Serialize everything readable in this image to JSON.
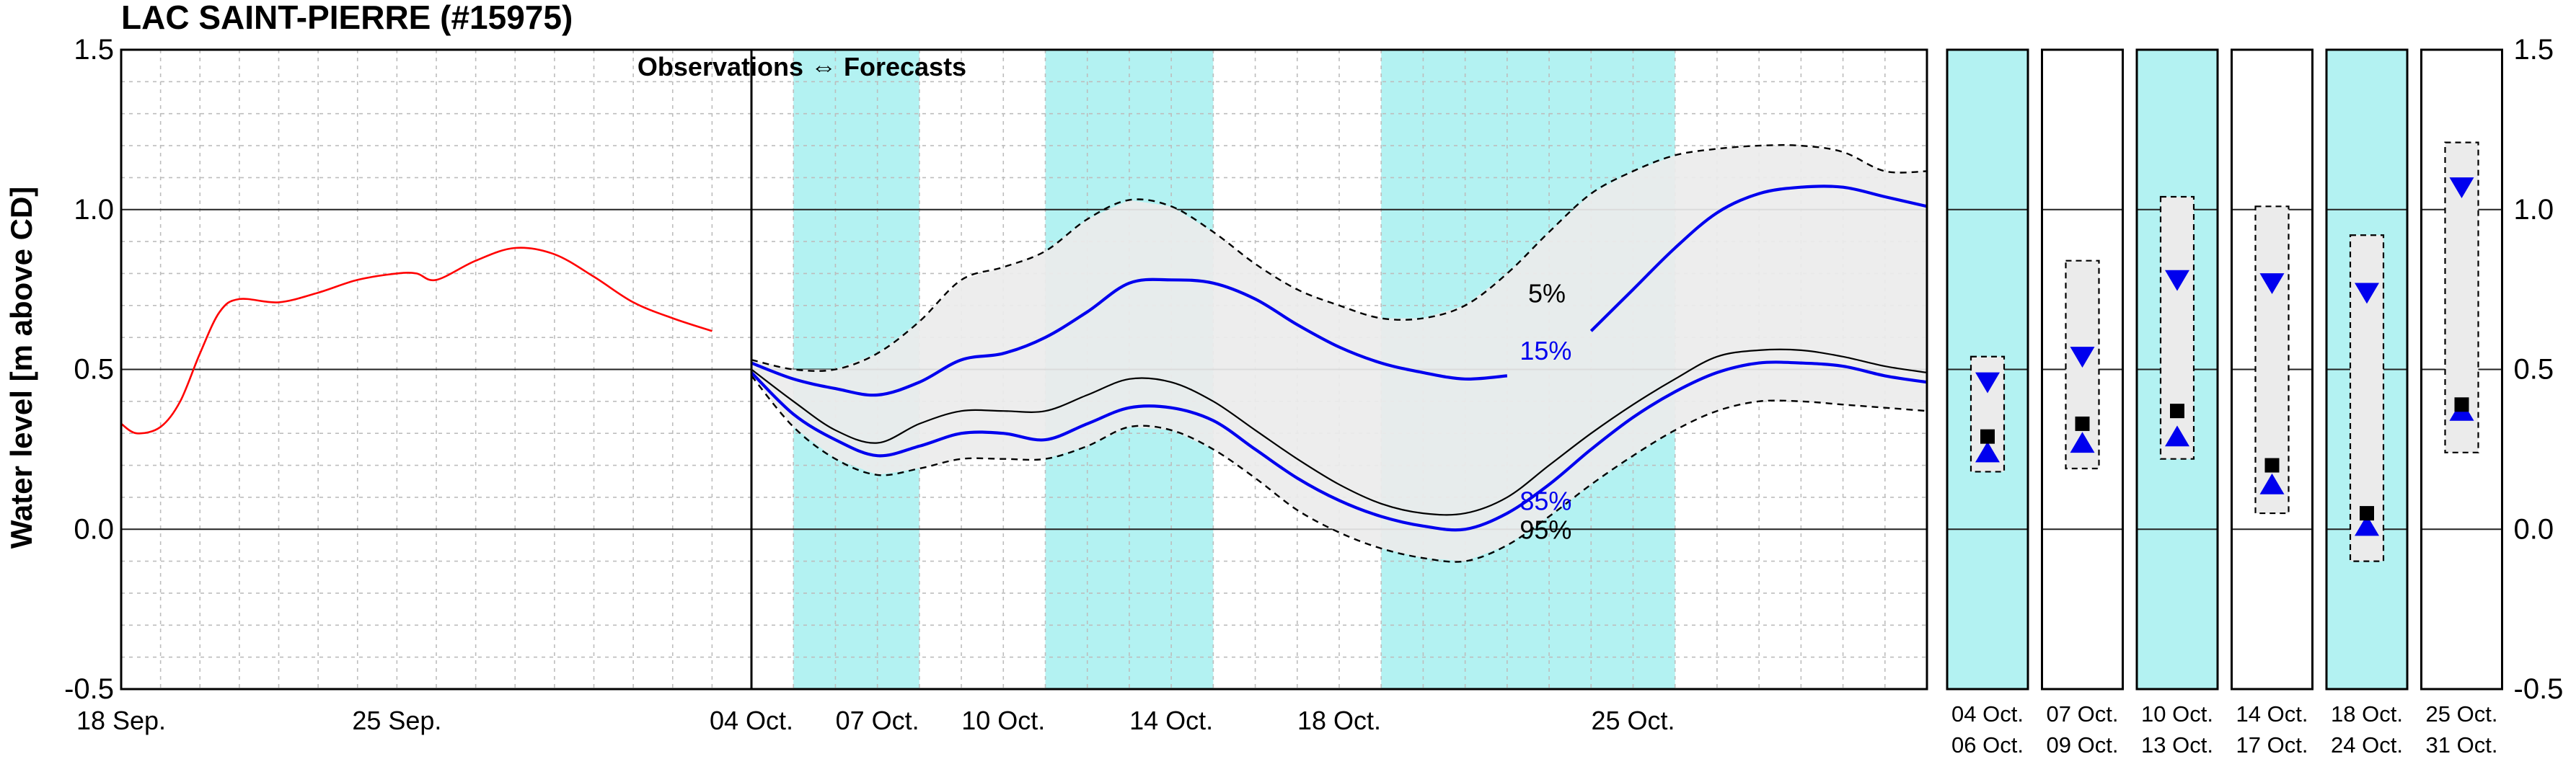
{
  "title": "LAC SAINT-PIERRE (#15975)",
  "colors": {
    "background": "#ffffff",
    "shade": "#b3f2f2",
    "band": "#ebebeb",
    "observed": "#ff0000",
    "percentile_blue": "#0000ee",
    "median": "#000000",
    "grid": "#bdbdbd"
  },
  "chart_data": {
    "type": "line",
    "ylabel": "Water level [m above CD]",
    "ylim": [
      -0.5,
      1.5
    ],
    "yticks": [
      1.5,
      1.0,
      0.5,
      0.0,
      -0.5
    ],
    "ytick_labels": [
      "1.5",
      "1.0",
      "0.5",
      "0.0",
      "-0.5"
    ],
    "ytick_labels_right": [
      "1.5",
      "1.0",
      "0.5",
      "0.0",
      "-0.5"
    ],
    "grid": true,
    "observed_panel": {
      "xlim": [
        -16,
        0
      ],
      "xticks": [
        -16,
        -9
      ],
      "xtick_labels": [
        "18 Sep.",
        "25 Sep."
      ],
      "divider_label": "Observations ⇔ Forecasts",
      "observed": {
        "x": [
          -16,
          -15.6,
          -15,
          -14.5,
          -14,
          -13.5,
          -13,
          -12,
          -11,
          -10,
          -9,
          -8.5,
          -8,
          -7,
          -6,
          -5,
          -4,
          -3,
          -2,
          -1
        ],
        "y": [
          0.33,
          0.3,
          0.32,
          0.4,
          0.55,
          0.68,
          0.72,
          0.71,
          0.74,
          0.78,
          0.8,
          0.8,
          0.78,
          0.84,
          0.88,
          0.86,
          0.79,
          0.71,
          0.66,
          0.62
        ]
      }
    },
    "forecast_panel": {
      "xlim": [
        0,
        28
      ],
      "xticks": [
        0,
        3,
        6,
        10,
        14,
        21
      ],
      "xtick_labels": [
        "04 Oct.",
        "07 Oct.",
        "10 Oct.",
        "14 Oct.",
        "18 Oct.",
        "25 Oct."
      ],
      "shaded_periods": [
        [
          1,
          4
        ],
        [
          7,
          11
        ],
        [
          15,
          22
        ]
      ],
      "x": [
        0,
        1,
        2,
        3,
        4,
        5,
        6,
        7,
        8,
        9,
        10,
        11,
        12,
        13,
        14,
        15,
        16,
        17,
        18,
        19,
        20,
        21,
        22,
        23,
        24,
        25,
        26,
        27,
        28
      ],
      "series": [
        {
          "name": "5%",
          "style": "dashed",
          "values": [
            0.53,
            0.5,
            0.5,
            0.55,
            0.65,
            0.78,
            0.82,
            0.87,
            0.97,
            1.03,
            1.01,
            0.93,
            0.83,
            0.75,
            0.7,
            0.66,
            0.66,
            0.7,
            0.8,
            0.93,
            1.05,
            1.12,
            1.17,
            1.19,
            1.2,
            1.2,
            1.18,
            1.12,
            1.12
          ]
        },
        {
          "name": "15%",
          "style": "blue",
          "values": [
            0.52,
            0.47,
            0.44,
            0.42,
            0.46,
            0.53,
            0.55,
            0.6,
            0.68,
            0.77,
            0.78,
            0.77,
            0.72,
            0.64,
            0.57,
            0.52,
            0.49,
            0.47,
            0.48,
            null,
            0.62,
            0.75,
            0.88,
            0.99,
            1.05,
            1.07,
            1.07,
            1.04,
            1.01
          ]
        },
        {
          "name": "",
          "style": "median",
          "values": [
            0.5,
            0.4,
            0.31,
            0.27,
            0.33,
            0.37,
            0.37,
            0.37,
            0.42,
            0.47,
            0.46,
            0.4,
            0.31,
            0.22,
            0.14,
            0.08,
            0.05,
            0.05,
            0.1,
            0.2,
            0.3,
            0.39,
            0.47,
            0.54,
            0.56,
            0.56,
            0.54,
            0.51,
            0.49
          ]
        },
        {
          "name": "85%",
          "style": "blue",
          "values": [
            0.49,
            0.36,
            0.28,
            0.23,
            0.26,
            0.3,
            0.3,
            0.28,
            0.33,
            0.38,
            0.38,
            0.34,
            0.25,
            0.16,
            0.09,
            0.04,
            0.01,
            0.0,
            0.05,
            0.14,
            0.25,
            0.35,
            0.43,
            0.49,
            0.52,
            0.52,
            0.51,
            0.48,
            0.46
          ]
        },
        {
          "name": "95%",
          "style": "dashed",
          "values": [
            0.48,
            0.32,
            0.22,
            0.17,
            0.19,
            0.22,
            0.22,
            0.22,
            0.26,
            0.32,
            0.31,
            0.25,
            0.16,
            0.06,
            -0.01,
            -0.06,
            -0.09,
            -0.1,
            -0.05,
            0.04,
            0.14,
            0.23,
            0.31,
            0.37,
            0.4,
            0.4,
            0.39,
            0.38,
            0.37
          ]
        }
      ],
      "label_positions": [
        {
          "text": "5%",
          "x": 18.5,
          "y": 0.71,
          "color": "black"
        },
        {
          "text": "15%",
          "x": 18.3,
          "y": 0.53,
          "color": "blue"
        },
        {
          "text": "85%",
          "x": 18.3,
          "y": 0.06,
          "color": "blue"
        },
        {
          "text": "95%",
          "x": 18.3,
          "y": -0.03,
          "color": "black"
        }
      ]
    },
    "weekly_panels": [
      {
        "label_top": "04 Oct.",
        "label_bottom": "06 Oct.",
        "shaded": true,
        "box": [
          0.18,
          0.54
        ],
        "down": 0.46,
        "median": 0.29,
        "up": 0.24
      },
      {
        "label_top": "07 Oct.",
        "label_bottom": "09 Oct.",
        "shaded": false,
        "box": [
          0.19,
          0.84
        ],
        "down": 0.54,
        "median": 0.33,
        "up": 0.27
      },
      {
        "label_top": "10 Oct.",
        "label_bottom": "13 Oct.",
        "shaded": true,
        "box": [
          0.22,
          1.04
        ],
        "down": 0.78,
        "median": 0.37,
        "up": 0.29
      },
      {
        "label_top": "14 Oct.",
        "label_bottom": "17 Oct.",
        "shaded": false,
        "box": [
          0.05,
          1.01
        ],
        "down": 0.77,
        "median": 0.2,
        "up": 0.14
      },
      {
        "label_top": "18 Oct.",
        "label_bottom": "24 Oct.",
        "shaded": true,
        "box": [
          -0.1,
          0.92
        ],
        "down": 0.74,
        "median": 0.05,
        "up": 0.01
      },
      {
        "label_top": "25 Oct.",
        "label_bottom": "31 Oct.",
        "shaded": false,
        "box": [
          0.24,
          1.21
        ],
        "down": 1.07,
        "median": 0.39,
        "up": 0.37
      }
    ]
  }
}
